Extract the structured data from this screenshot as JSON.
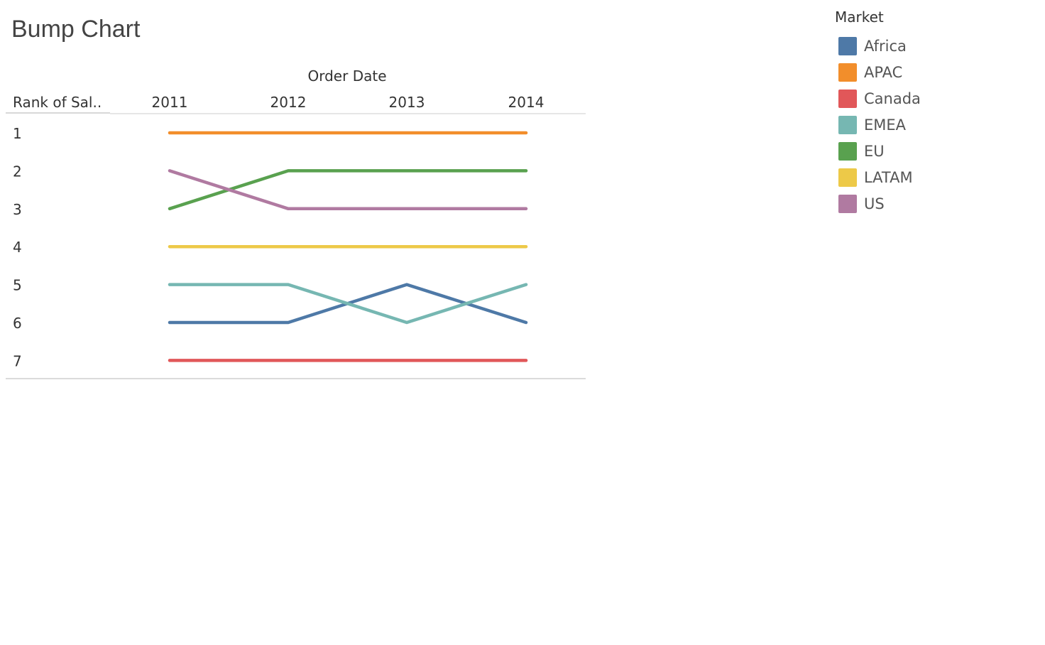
{
  "chart_data": {
    "type": "line",
    "title": "Bump Chart",
    "xlabel": "Order Date",
    "ylabel": "Rank of Sal..",
    "categories": [
      "2011",
      "2012",
      "2013",
      "2014"
    ],
    "y_ticks": [
      "1",
      "2",
      "3",
      "4",
      "5",
      "6",
      "7"
    ],
    "ylim": [
      1,
      7
    ],
    "y_reversed": true,
    "legend_title": "Market",
    "legend_position": "top-right",
    "series": [
      {
        "name": "Africa",
        "color": "#4e79a7",
        "values": [
          6,
          6,
          5,
          6
        ]
      },
      {
        "name": "APAC",
        "color": "#f28e2b",
        "values": [
          1,
          1,
          1,
          1
        ]
      },
      {
        "name": "Canada",
        "color": "#e15759",
        "values": [
          7,
          7,
          7,
          7
        ]
      },
      {
        "name": "EMEA",
        "color": "#76b7b2",
        "values": [
          5,
          5,
          6,
          5
        ]
      },
      {
        "name": "EU",
        "color": "#59a14f",
        "values": [
          3,
          2,
          2,
          2
        ]
      },
      {
        "name": "LATAM",
        "color": "#edc948",
        "values": [
          4,
          4,
          4,
          4
        ]
      },
      {
        "name": "US",
        "color": "#b07aa1",
        "values": [
          2,
          3,
          3,
          3
        ]
      }
    ]
  }
}
